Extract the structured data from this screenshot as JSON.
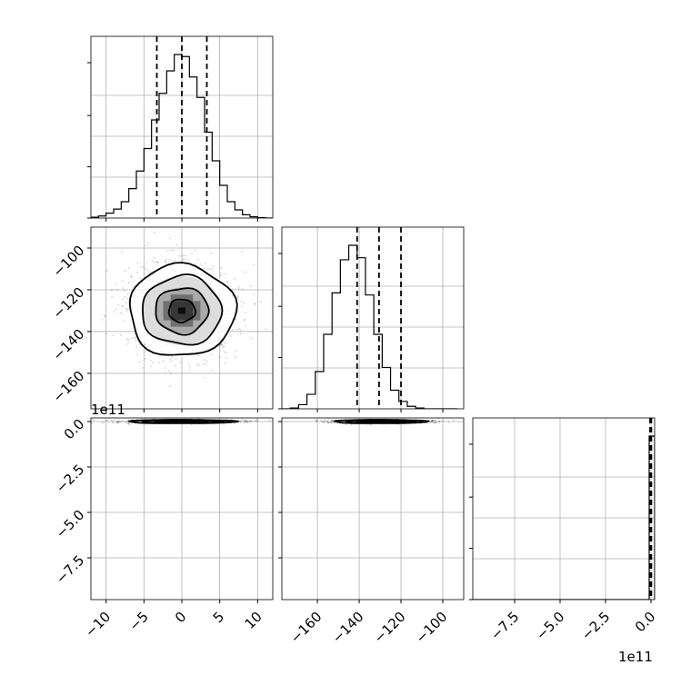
{
  "chart_data": {
    "type": "corner",
    "title": "",
    "grid": true,
    "n_params": 3,
    "axis_exponent_label": "1e11",
    "params": [
      {
        "range": [
          -12,
          12
        ],
        "ticks": [
          -10,
          -5,
          0,
          5,
          10
        ],
        "tick_labels": [
          "−10",
          "−5",
          "0",
          "5",
          "10"
        ],
        "quantiles": [
          -3.3,
          0,
          3.3
        ]
      },
      {
        "range": [
          -177,
          -90
        ],
        "ticks": [
          -160,
          -140,
          -120,
          -100
        ],
        "tick_labels": [
          "−160",
          "−140",
          "−120",
          "−100"
        ],
        "quantiles": [
          -141,
          -130.5,
          -120
        ]
      },
      {
        "range": [
          -9.8,
          0.2
        ],
        "ticks": [
          -7.5,
          -5.0,
          -2.5,
          0.0
        ],
        "tick_labels": [
          "−7.5",
          "−5.0",
          "−2.5",
          "0.0"
        ],
        "quantiles": [
          -0.05,
          0,
          0.02
        ]
      }
    ],
    "histograms": [
      {
        "param": 0,
        "bin_edges": [
          -12,
          -11,
          -10,
          -9,
          -8,
          -7,
          -6,
          -5,
          -4,
          -3,
          -2,
          -1,
          0,
          1,
          2,
          3,
          4,
          5,
          6,
          7,
          8,
          9,
          10,
          11,
          12
        ],
        "counts": [
          2,
          5,
          12,
          22,
          40,
          72,
          115,
          170,
          240,
          305,
          360,
          400,
          395,
          345,
          295,
          210,
          140,
          80,
          40,
          20,
          8,
          3,
          1,
          0
        ]
      },
      {
        "param": 1,
        "bin_edges": [
          -177,
          -173,
          -169,
          -165,
          -161,
          -157,
          -153,
          -149,
          -145,
          -141,
          -137,
          -133,
          -129,
          -125,
          -121,
          -117,
          -113,
          -109,
          -105,
          -101,
          -97,
          -93
        ],
        "counts": [
          0,
          2,
          10,
          35,
          90,
          180,
          280,
          360,
          395,
          365,
          275,
          180,
          100,
          45,
          18,
          6,
          2,
          0,
          0,
          0,
          0
        ]
      },
      {
        "param": 2,
        "bin_edges": [
          -9.8,
          -0.1,
          0.2
        ],
        "counts": [
          0,
          400
        ]
      }
    ],
    "density_panels": [
      {
        "x_param": 0,
        "y_param": 1,
        "center": [
          0,
          -130
        ],
        "sigma": [
          3.5,
          11
        ]
      },
      {
        "x_param": 0,
        "y_param": 2,
        "center": [
          0,
          0
        ],
        "sigma": [
          3.5,
          0.05
        ]
      },
      {
        "x_param": 1,
        "y_param": 2,
        "center": [
          -130,
          0
        ],
        "sigma": [
          11,
          0.05
        ]
      }
    ],
    "contour_levels_sigma": [
      0.5,
      1.0,
      1.5,
      2.0
    ]
  }
}
